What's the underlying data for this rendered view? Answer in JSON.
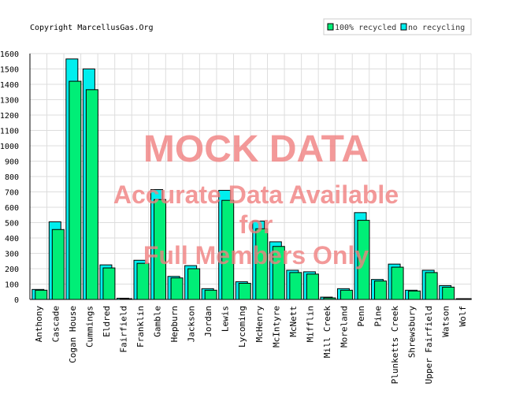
{
  "copyright": "Copyright MarcellusGas.Org",
  "watermark": {
    "line1": "MOCK DATA",
    "line2": "Accurate Data Available",
    "line3": "for",
    "line4": "Full Members Only",
    "color": "#f08080"
  },
  "chart_data": {
    "type": "bar",
    "grid": true,
    "legend_position": "top-right",
    "ylim": [
      0,
      1600
    ],
    "yticks": [
      0,
      100,
      200,
      300,
      400,
      500,
      600,
      700,
      800,
      900,
      1000,
      1100,
      1200,
      1300,
      1400,
      1500,
      1600
    ],
    "categories": [
      "Anthony",
      "Cascade",
      "Cogan House",
      "Cummings",
      "Eldred",
      "Fairfield",
      "Franklin",
      "Gamble",
      "Hepburn",
      "Jackson",
      "Jordan",
      "Lewis",
      "Lycoming",
      "McHenry",
      "McIntyre",
      "McNett",
      "Mifflin",
      "Mill Creek",
      "Moreland",
      "Penn",
      "Pine",
      "Plunketts Creek",
      "Shrewsbury",
      "Upper Fairfield",
      "Watson",
      "Wolf"
    ],
    "series": [
      {
        "name": "100% recycled",
        "color": "#00ee77",
        "values": [
          60,
          455,
          1420,
          1365,
          205,
          5,
          235,
          650,
          140,
          200,
          60,
          645,
          105,
          460,
          345,
          175,
          165,
          10,
          60,
          515,
          120,
          210,
          55,
          175,
          80,
          5
        ]
      },
      {
        "name": "no recycling",
        "color": "#00eeee",
        "values": [
          65,
          505,
          1565,
          1500,
          225,
          8,
          255,
          715,
          150,
          220,
          70,
          710,
          115,
          510,
          375,
          190,
          180,
          15,
          70,
          565,
          130,
          230,
          60,
          190,
          90,
          5
        ]
      }
    ]
  }
}
